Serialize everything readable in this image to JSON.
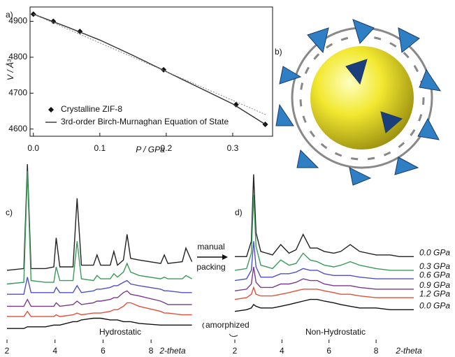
{
  "chart_data": [
    {
      "type": "line",
      "panel_label": "a)",
      "xlabel": "P / GPa",
      "ylabel": "V / Å³",
      "xlim": [
        -0.005,
        0.36
      ],
      "ylim": [
        4580,
        4940
      ],
      "xticks": [
        {
          "value": 0,
          "label": "0.0"
        },
        0.1,
        0.2,
        0.3
      ],
      "yticks": [
        4600,
        4700,
        4800,
        4900
      ],
      "frame": true,
      "legend": "lower left",
      "series": [
        {
          "name": "Crystalline ZIF-8",
          "style": "markers",
          "color": "#111111",
          "x": [
            0,
            0.03,
            0.07,
            0.196,
            0.305,
            0.349
          ],
          "values": [
            4920,
            4900,
            4872,
            4765,
            4668,
            4613
          ]
        },
        {
          "name": "3rd-order Birch-Murnaghan Equation of State",
          "style": "solid",
          "color": "#333333",
          "x": [
            0,
            0.05,
            0.1,
            0.15,
            0.2,
            0.25,
            0.3,
            0.35
          ],
          "values": [
            4920,
            4885,
            4848,
            4805,
            4760,
            4715,
            4670,
            4612
          ]
        },
        {
          "style": "dotted",
          "color": "#888888",
          "x": [
            0,
            0.35
          ],
          "values": [
            4920,
            4640
          ]
        }
      ]
    },
    {
      "type": "line",
      "panel_label": "c)",
      "annotation": "Hydrostatic",
      "xlabel": "2-theta",
      "xlim": [
        2,
        9.8
      ],
      "ylim": [
        0,
        100
      ],
      "xticks": [
        2,
        4,
        6,
        8
      ],
      "x": [
        2,
        2.7,
        2.85,
        3.0,
        3.6,
        3.95,
        4.05,
        4.2,
        4.75,
        4.92,
        5.1,
        5.6,
        5.75,
        5.9,
        6.3,
        6.45,
        6.6,
        6.85,
        7.0,
        7.15,
        7.5,
        8.4,
        8.55,
        8.7,
        9.3,
        9.45,
        9.7
      ],
      "series": [
        {
          "color": "#222222",
          "values": [
            38,
            39,
            100,
            39,
            39,
            40,
            57,
            40,
            40,
            80,
            41,
            41,
            47,
            41,
            41,
            49,
            41,
            44,
            59,
            45,
            44,
            42,
            47,
            42,
            43,
            51,
            43
          ]
        },
        {
          "color": "#3a9a5a",
          "values": [
            30,
            31,
            96,
            32,
            31,
            31,
            40,
            32,
            32,
            55,
            33,
            32,
            35,
            33,
            33,
            36,
            34,
            37,
            42,
            37,
            35,
            33,
            34,
            33,
            33,
            35,
            33
          ]
        },
        {
          "color": "#5050c8",
          "values": [
            24,
            24,
            34,
            25,
            25,
            25,
            28,
            25,
            25,
            29,
            25,
            26,
            27,
            27,
            28,
            29,
            29,
            31,
            32,
            30,
            29,
            27,
            26,
            26,
            25,
            25,
            25
          ]
        },
        {
          "color": "#7a3a8a",
          "values": [
            17,
            17,
            21,
            17,
            17,
            17,
            19,
            17,
            18,
            20,
            18,
            19,
            20,
            20,
            21,
            22,
            22,
            25,
            26,
            24,
            23,
            20,
            19,
            18,
            18,
            18,
            18
          ]
        },
        {
          "color": "#e0503a",
          "values": [
            11,
            11,
            14,
            11,
            11,
            11,
            12,
            11,
            12,
            13,
            12,
            13,
            13,
            13,
            14,
            15,
            15,
            17,
            19,
            19,
            17,
            14,
            13,
            13,
            12,
            12,
            12
          ]
        },
        {
          "color": "#111111",
          "values": [
            4,
            4,
            5,
            5,
            5,
            6,
            6,
            6,
            8,
            8,
            9,
            10,
            10,
            10,
            9,
            9,
            9,
            8,
            8,
            8,
            7,
            6,
            6,
            6,
            6,
            6,
            6
          ]
        }
      ]
    },
    {
      "type": "line",
      "panel_label": "d)",
      "annotation": "Non-Hydrostatic",
      "xlabel": "2-theta",
      "xlim": [
        2,
        9.6
      ],
      "ylim": [
        0,
        100
      ],
      "xticks": [
        2,
        4,
        6,
        8
      ],
      "legend": "right",
      "x": [
        2,
        2.5,
        2.7,
        2.8,
        2.9,
        3.1,
        3.6,
        3.95,
        4.3,
        4.6,
        4.9,
        5.2,
        5.5,
        5.8,
        6.2,
        6.5,
        6.9,
        7.3,
        8,
        8.6,
        9,
        9.6
      ],
      "series": [
        {
          "name": "0.0 GPa",
          "color": "#222222",
          "values": [
            46,
            46,
            55,
            94,
            60,
            49,
            47,
            53,
            48,
            50,
            59,
            51,
            51,
            49,
            48,
            49,
            53,
            49,
            47,
            47,
            46,
            46
          ]
        },
        {
          "name": "0.3 GPa",
          "color": "#3a9a5a",
          "values": [
            38,
            39,
            48,
            82,
            52,
            41,
            39,
            44,
            41,
            42,
            48,
            44,
            43,
            41,
            40,
            41,
            43,
            41,
            39,
            38,
            38,
            38
          ]
        },
        {
          "name": "0.6 GPa",
          "color": "#5050c8",
          "values": [
            32,
            33,
            38,
            55,
            40,
            34,
            34,
            36,
            36,
            37,
            39,
            38,
            38,
            36,
            35,
            35,
            35,
            34,
            33,
            33,
            33,
            33
          ]
        },
        {
          "name": "0.9 GPa",
          "color": "#7a3a8a",
          "values": [
            26,
            27,
            30,
            40,
            31,
            28,
            28,
            30,
            30,
            31,
            33,
            32,
            32,
            30,
            29,
            29,
            29,
            28,
            27,
            27,
            27,
            27
          ]
        },
        {
          "name": "1.2 GPa",
          "color": "#e0503a",
          "values": [
            21,
            22,
            24,
            28,
            24,
            23,
            23,
            24,
            25,
            26,
            27,
            27,
            27,
            26,
            25,
            24,
            24,
            23,
            22,
            22,
            22,
            22
          ]
        },
        {
          "name": "0.0 GPa",
          "color": "#111111",
          "values": [
            14,
            15,
            16,
            18,
            17,
            16,
            16,
            17,
            18,
            19,
            20,
            21,
            21,
            20,
            19,
            18,
            17,
            16,
            16,
            15,
            15,
            15
          ]
        }
      ]
    }
  ],
  "figure": {
    "panel_b_label": "b)",
    "transfer_note": [
      "manual",
      "packing"
    ],
    "amorphized_note": "amorphized"
  }
}
